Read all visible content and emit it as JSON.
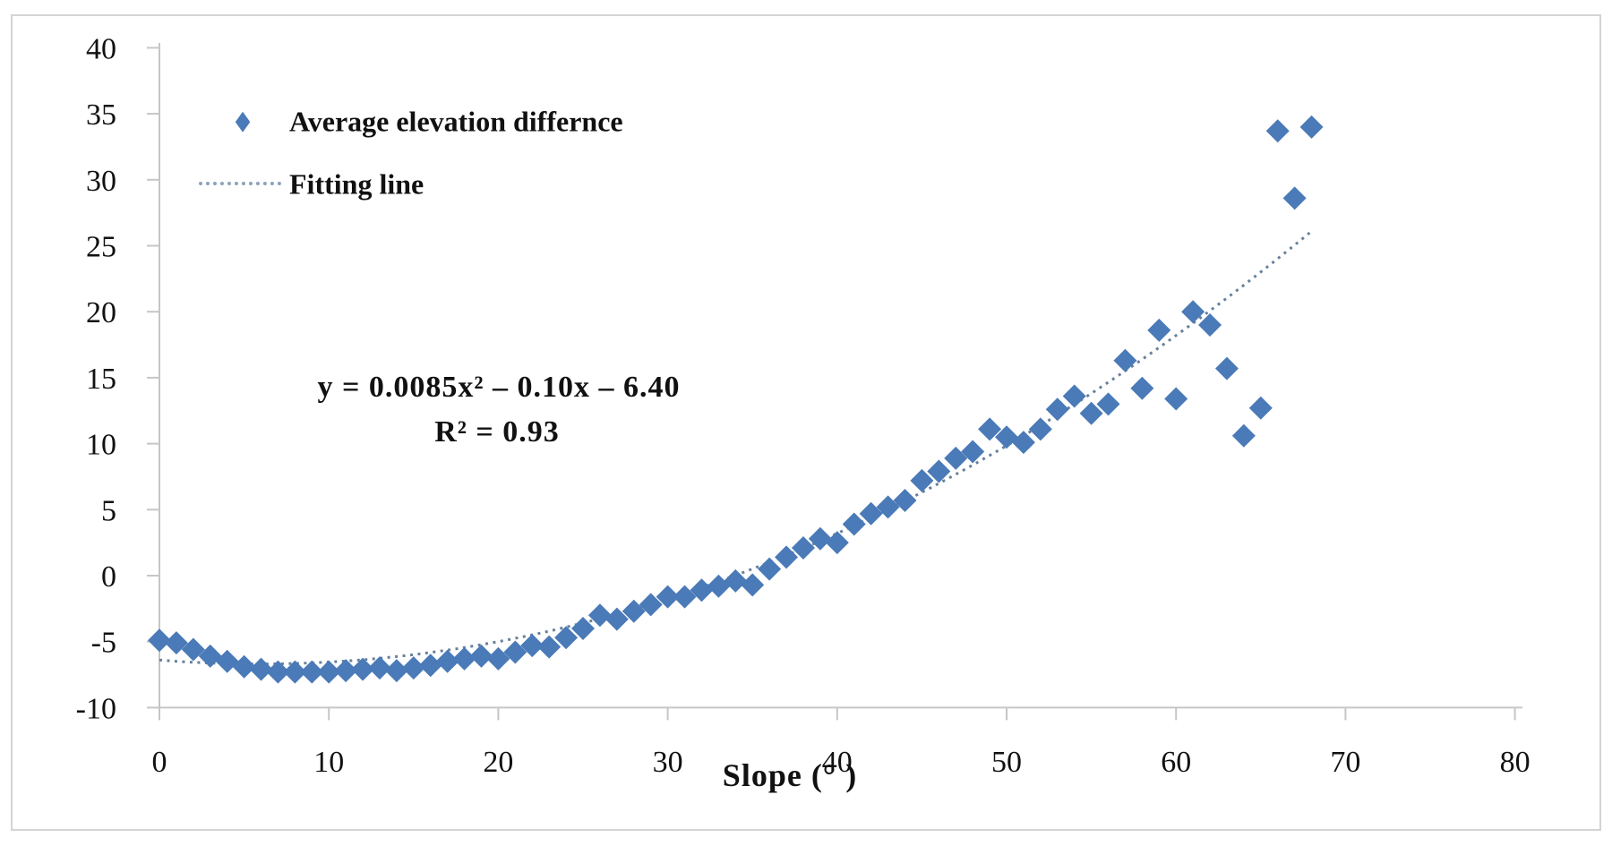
{
  "chart_data": {
    "type": "scatter",
    "title": "",
    "xlabel": "Slope (°  )",
    "ylabel": "",
    "xlim": [
      0,
      80
    ],
    "ylim": [
      -10,
      40
    ],
    "x_ticks": [
      0,
      10,
      20,
      30,
      40,
      50,
      60,
      70,
      80
    ],
    "y_ticks": [
      40,
      35,
      30,
      25,
      20,
      15,
      10,
      5,
      0,
      -5,
      -10
    ],
    "grid": false,
    "legend_position": "inside-top-left",
    "series": [
      {
        "name": "Average elevation differnce",
        "marker": "diamond",
        "color": "#4a7ab7",
        "x": [
          0,
          1,
          2,
          3,
          4,
          5,
          6,
          7,
          8,
          9,
          10,
          11,
          12,
          13,
          14,
          15,
          16,
          17,
          18,
          19,
          20,
          21,
          22,
          23,
          24,
          25,
          26,
          27,
          28,
          29,
          30,
          31,
          32,
          33,
          34,
          35,
          36,
          37,
          38,
          39,
          40,
          41,
          42,
          43,
          44,
          45,
          46,
          47,
          48,
          49,
          50,
          51,
          52,
          53,
          54,
          55,
          56,
          57,
          58,
          59,
          60,
          61,
          62,
          63,
          64,
          65,
          66,
          67,
          68
        ],
        "y": [
          -4.9,
          -5.1,
          -5.6,
          -6.1,
          -6.5,
          -6.9,
          -7.1,
          -7.3,
          -7.3,
          -7.3,
          -7.3,
          -7.2,
          -7.1,
          -7.0,
          -7.2,
          -7.0,
          -6.8,
          -6.5,
          -6.3,
          -6.1,
          -6.3,
          -5.8,
          -5.3,
          -5.4,
          -4.7,
          -4.0,
          -3.0,
          -3.3,
          -2.7,
          -2.2,
          -1.6,
          -1.6,
          -1.1,
          -0.8,
          -0.4,
          -0.7,
          0.5,
          1.4,
          2.1,
          2.8,
          2.5,
          3.9,
          4.7,
          5.2,
          5.7,
          7.2,
          7.9,
          8.9,
          9.4,
          11.1,
          10.5,
          10.1,
          11.1,
          12.6,
          13.6,
          12.3,
          13.0,
          16.3,
          14.2,
          18.6,
          13.4,
          20.0,
          19.0,
          15.7,
          10.6,
          12.7,
          33.7,
          28.6,
          34.0
        ]
      }
    ],
    "fit_line": {
      "name": "Fitting line",
      "style": "dotted",
      "color": "#67809c",
      "equation": "y = 0.0085x² – 0.10x – 6.40",
      "r_squared": "R² = 0.93",
      "a": 0.0085,
      "b": -0.1,
      "c": -6.4,
      "x_domain": [
        0,
        68
      ]
    },
    "colors": {
      "marker": "#4a7ab7",
      "fit_line": "#67809c",
      "legend_line_sample": "#8ba3bd",
      "axis": "#c6c6c6",
      "text": "#111111",
      "figure_border": "#d4d4d4"
    }
  }
}
